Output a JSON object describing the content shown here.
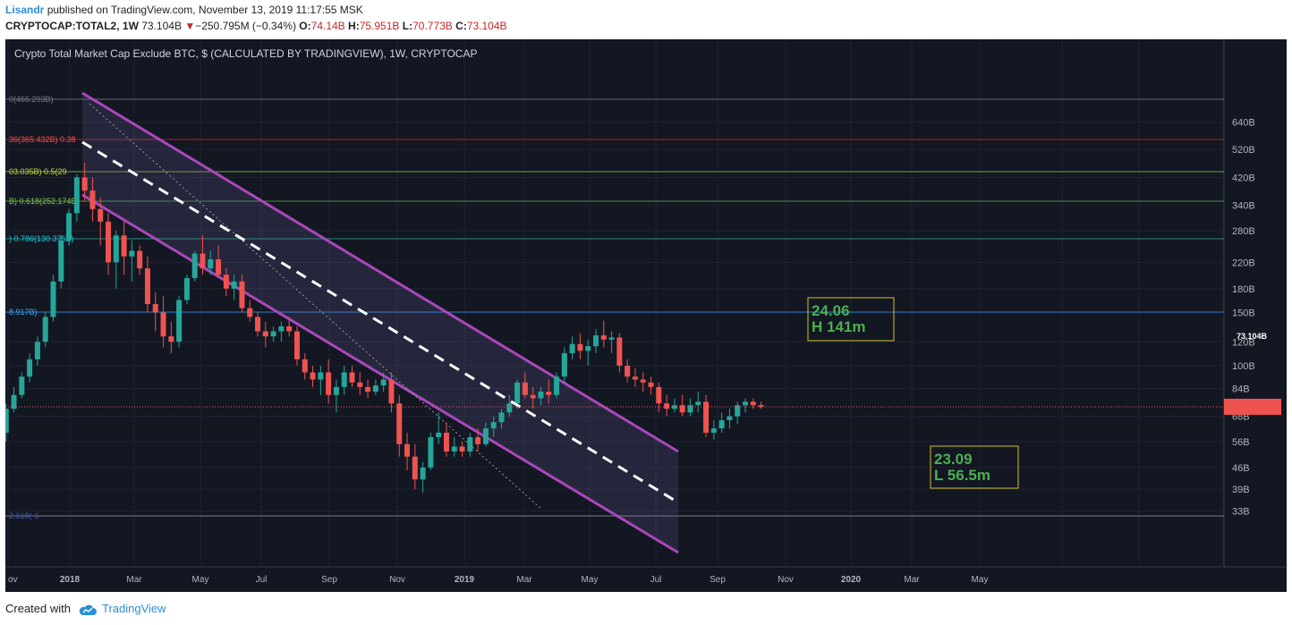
{
  "header": {
    "author": "Lisandr",
    "published_text": "published on TradingView.com, November 13, 2019 11:17:55 MSK",
    "symbol": "CRYPTOCAP:TOTAL2, 1W",
    "last": "73.104B",
    "change_arrow": "▼",
    "change": "−250.795M (−0.34%)",
    "o_label": "O:",
    "o_value": "74.14B",
    "h_label": "H:",
    "h_value": "75.951B",
    "l_label": "L:",
    "l_value": "70.773B",
    "c_label": "C:",
    "c_value": "73.104B"
  },
  "chart_title": "Crypto Total Market Cap Exclude BTC, $ (CALCULATED BY TRADINGVIEW), 1W, CRYPTOCAP",
  "footer": {
    "created_with": "Created with",
    "brand": "TradingView"
  },
  "colors": {
    "background": "#131722",
    "up": "#26a69a",
    "down": "#ef5350",
    "channel": "#ab47bc",
    "box": "#d4c22a",
    "box_text": "#4caf50",
    "price_line": "#ef5350"
  },
  "chart_data": {
    "type": "candlestick",
    "y_scale": "log",
    "y_ticks": [
      "640B",
      "520B",
      "420B",
      "340B",
      "280B",
      "220B",
      "180B",
      "150B",
      "120B",
      "100B",
      "84B",
      "68B",
      "56B",
      "46B",
      "39B",
      "33B"
    ],
    "last_price_label": "73.104B",
    "last_price_axis_label": "73.104B",
    "x_ticks": [
      "ov",
      "2018",
      "Mar",
      "May",
      "Jul",
      "Sep",
      "Nov",
      "2019",
      "Mar",
      "May",
      "Jul",
      "Sep",
      "Nov",
      "2020",
      "Mar",
      "May"
    ],
    "fib_labels": [
      {
        "text": "0(466.293B)",
        "level": 466
      },
      {
        "text": "36(365.432B) 0.38",
        "level": 366
      },
      {
        "text": "03.035B) 0.5(29",
        "level": 303
      },
      {
        "text": "B) 0.618(252.174B)",
        "level": 252
      },
      {
        "text": ") 0.786(130.375B)",
        "level": 201
      },
      {
        "text": "8.917B)",
        "level": 130
      },
      {
        "text": "2.618(-6",
        "level": 40
      }
    ],
    "annotations": [
      {
        "line1": "24.06",
        "line2": "H 141m"
      },
      {
        "line1": "23.09",
        "line2": "L 56.5m"
      }
    ],
    "weekly_candles_approx": [
      [
        6,
        60,
        75,
        56,
        72
      ],
      [
        7,
        72,
        85,
        70,
        80
      ],
      [
        8,
        80,
        95,
        78,
        92
      ],
      [
        9,
        92,
        110,
        88,
        105
      ],
      [
        10,
        105,
        125,
        100,
        120
      ],
      [
        11,
        120,
        150,
        115,
        145
      ],
      [
        12,
        145,
        200,
        140,
        190
      ],
      [
        13,
        190,
        270,
        180,
        260
      ],
      [
        14,
        260,
        330,
        250,
        320
      ],
      [
        15,
        320,
        430,
        300,
        420
      ],
      [
        16,
        420,
        470,
        350,
        380
      ],
      [
        17,
        380,
        420,
        300,
        330
      ],
      [
        18,
        330,
        360,
        250,
        300
      ],
      [
        19,
        300,
        320,
        200,
        220
      ],
      [
        20,
        220,
        280,
        180,
        270
      ],
      [
        21,
        270,
        300,
        200,
        230
      ],
      [
        22,
        230,
        260,
        190,
        240
      ],
      [
        23,
        240,
        250,
        200,
        210
      ],
      [
        24,
        210,
        230,
        150,
        160
      ],
      [
        25,
        160,
        175,
        130,
        150
      ],
      [
        26,
        150,
        170,
        115,
        125
      ],
      [
        27,
        125,
        140,
        110,
        120
      ],
      [
        28,
        120,
        170,
        115,
        165
      ],
      [
        29,
        165,
        200,
        160,
        195
      ],
      [
        30,
        195,
        240,
        190,
        235
      ],
      [
        31,
        235,
        270,
        200,
        210
      ],
      [
        32,
        210,
        240,
        200,
        225
      ],
      [
        33,
        225,
        250,
        195,
        200
      ],
      [
        34,
        200,
        210,
        170,
        180
      ],
      [
        35,
        180,
        200,
        165,
        190
      ],
      [
        36,
        190,
        200,
        150,
        155
      ],
      [
        37,
        155,
        165,
        140,
        145
      ],
      [
        38,
        145,
        150,
        125,
        130
      ],
      [
        39,
        130,
        140,
        115,
        125
      ],
      [
        40,
        125,
        135,
        120,
        130
      ],
      [
        41,
        130,
        140,
        120,
        135
      ],
      [
        42,
        135,
        145,
        125,
        130
      ],
      [
        43,
        130,
        135,
        100,
        105
      ],
      [
        44,
        105,
        110,
        90,
        95
      ],
      [
        45,
        95,
        100,
        85,
        90
      ],
      [
        46,
        90,
        100,
        80,
        95
      ],
      [
        47,
        95,
        105,
        75,
        80
      ],
      [
        48,
        80,
        90,
        70,
        85
      ],
      [
        49,
        85,
        100,
        80,
        95
      ],
      [
        50,
        95,
        100,
        85,
        88
      ],
      [
        51,
        88,
        95,
        80,
        85
      ],
      [
        52,
        85,
        90,
        78,
        82
      ],
      [
        53,
        82,
        90,
        80,
        86
      ],
      [
        54,
        86,
        95,
        82,
        90
      ],
      [
        55,
        90,
        95,
        70,
        75
      ],
      [
        56,
        75,
        80,
        50,
        55
      ],
      [
        57,
        55,
        60,
        45,
        50
      ],
      [
        58,
        50,
        55,
        39,
        42
      ],
      [
        59,
        42,
        48,
        38,
        46
      ],
      [
        60,
        46,
        60,
        45,
        58
      ],
      [
        61,
        58,
        70,
        55,
        60
      ],
      [
        62,
        60,
        65,
        50,
        52
      ],
      [
        63,
        52,
        58,
        50,
        54
      ],
      [
        64,
        54,
        56,
        50,
        52
      ],
      [
        65,
        52,
        60,
        50,
        58
      ],
      [
        66,
        58,
        62,
        52,
        55
      ],
      [
        67,
        55,
        65,
        54,
        62
      ],
      [
        68,
        62,
        68,
        58,
        65
      ],
      [
        69,
        65,
        72,
        62,
        70
      ],
      [
        70,
        70,
        80,
        68,
        75
      ],
      [
        71,
        75,
        90,
        72,
        88
      ],
      [
        72,
        88,
        95,
        78,
        80
      ],
      [
        73,
        80,
        85,
        72,
        78
      ],
      [
        74,
        78,
        85,
        74,
        82
      ],
      [
        75,
        82,
        90,
        75,
        80
      ],
      [
        76,
        80,
        95,
        78,
        92
      ],
      [
        77,
        92,
        115,
        88,
        110
      ],
      [
        78,
        110,
        125,
        105,
        118
      ],
      [
        79,
        118,
        128,
        105,
        112
      ],
      [
        80,
        112,
        122,
        100,
        116
      ],
      [
        81,
        116,
        132,
        110,
        126
      ],
      [
        82,
        126,
        141,
        115,
        122
      ],
      [
        83,
        122,
        130,
        110,
        124
      ],
      [
        84,
        124,
        128,
        95,
        100
      ],
      [
        85,
        100,
        105,
        88,
        92
      ],
      [
        86,
        92,
        98,
        85,
        90
      ],
      [
        87,
        90,
        95,
        82,
        88
      ],
      [
        88,
        88,
        92,
        80,
        85
      ],
      [
        89,
        85,
        88,
        70,
        75
      ],
      [
        90,
        75,
        80,
        68,
        72
      ],
      [
        91,
        72,
        78,
        70,
        74
      ],
      [
        92,
        74,
        80,
        68,
        70
      ],
      [
        93,
        70,
        78,
        68,
        74
      ],
      [
        94,
        74,
        82,
        70,
        76
      ],
      [
        95,
        76,
        80,
        58,
        60
      ],
      [
        96,
        60,
        66,
        57,
        62
      ],
      [
        97,
        62,
        70,
        60,
        66
      ],
      [
        98,
        66,
        72,
        62,
        68
      ],
      [
        99,
        68,
        76,
        64,
        74
      ],
      [
        100,
        74,
        78,
        70,
        76
      ],
      [
        101,
        76,
        78,
        72,
        74
      ],
      [
        102,
        74,
        76,
        72,
        73
      ]
    ]
  }
}
